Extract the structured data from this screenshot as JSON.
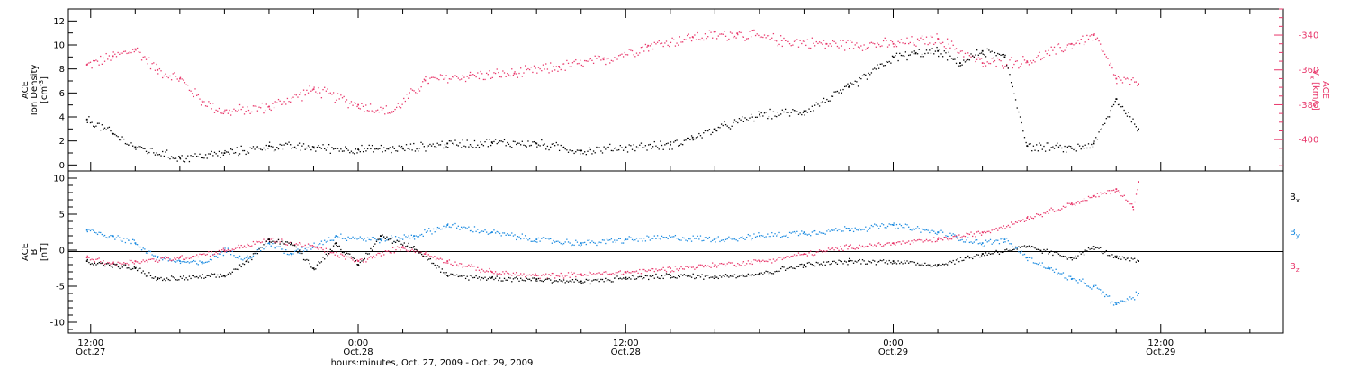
{
  "chart_data": [
    {
      "type": "scatter",
      "title": "",
      "xlabel": "hours:minutes, Oct. 27, 2009 - Oct. 29, 2009",
      "ylabel": "ACE Ion Density [cm⁻³]",
      "y2label": "ACE Vₓ [km/s]",
      "ylim": [
        -0.5,
        13
      ],
      "y2lim": [
        -418,
        -325
      ],
      "xlim": [
        "2009-10-27 11:00",
        "2009-10-29 17:30"
      ],
      "yticks": [
        0,
        2,
        4,
        6,
        8,
        10,
        12
      ],
      "y2ticks": [
        -400,
        -380,
        -360,
        -340
      ],
      "colors": {
        "density": "#000000",
        "vx": "#e8366a"
      },
      "series": [
        {
          "name": "Ion Density",
          "axis": "left",
          "color": "#000000",
          "x": [
            "2009-10-27 11:50",
            "2009-10-27 13:00",
            "2009-10-27 14:00",
            "2009-10-27 16:00",
            "2009-10-27 18:00",
            "2009-10-27 20:00",
            "2009-10-27 22:00",
            "2009-10-28 00:00",
            "2009-10-28 02:00",
            "2009-10-28 04:00",
            "2009-10-28 06:00",
            "2009-10-28 08:00",
            "2009-10-28 10:00",
            "2009-10-28 12:00",
            "2009-10-28 14:00",
            "2009-10-28 15:00",
            "2009-10-28 16:00",
            "2009-10-28 18:00",
            "2009-10-28 20:00",
            "2009-10-28 22:00",
            "2009-10-29 00:00",
            "2009-10-29 01:00",
            "2009-10-29 02:00",
            "2009-10-29 03:00",
            "2009-10-29 04:00",
            "2009-10-29 05:00",
            "2009-10-29 06:00",
            "2009-10-29 08:00",
            "2009-10-29 09:00",
            "2009-10-29 10:00",
            "2009-10-29 11:00"
          ],
          "y": [
            3.8,
            2.6,
            1.5,
            0.6,
            1.0,
            1.6,
            1.5,
            1.3,
            1.4,
            1.8,
            1.9,
            1.8,
            1.2,
            1.5,
            1.7,
            2.3,
            3.0,
            4.2,
            4.5,
            6.5,
            9.0,
            9.3,
            9.5,
            8.5,
            9.5,
            9.0,
            1.6,
            1.4,
            1.8,
            5.5,
            3.0
          ]
        },
        {
          "name": "Vx",
          "axis": "right",
          "color": "#e8366a",
          "x": [
            "2009-10-27 11:50",
            "2009-10-27 13:00",
            "2009-10-27 14:00",
            "2009-10-27 15:00",
            "2009-10-27 16:00",
            "2009-10-27 17:00",
            "2009-10-27 18:00",
            "2009-10-27 20:00",
            "2009-10-27 22:00",
            "2009-10-28 00:00",
            "2009-10-28 01:30",
            "2009-10-28 03:00",
            "2009-10-28 05:00",
            "2009-10-28 07:00",
            "2009-10-28 09:00",
            "2009-10-28 11:00",
            "2009-10-28 13:00",
            "2009-10-28 15:00",
            "2009-10-28 17:00",
            "2009-10-28 19:00",
            "2009-10-28 21:00",
            "2009-10-29 00:00",
            "2009-10-29 02:00",
            "2009-10-29 04:00",
            "2009-10-29 06:00",
            "2009-10-29 08:00",
            "2009-10-29 09:00",
            "2009-10-29 10:00",
            "2009-10-29 11:00"
          ],
          "y": [
            -357,
            -352,
            -348,
            -360,
            -365,
            -378,
            -384,
            -381,
            -371,
            -380,
            -384,
            -366,
            -363,
            -362,
            -358,
            -354,
            -346,
            -341,
            -339,
            -343,
            -345,
            -345,
            -342,
            -356,
            -355,
            -345,
            -340,
            -365,
            -368
          ]
        }
      ]
    },
    {
      "type": "scatter",
      "title": "",
      "xlabel": "hours:minutes, Oct. 27, 2009 - Oct. 29, 2009",
      "ylabel": "ACE B [nT]",
      "ylim": [
        -11.5,
        11
      ],
      "xlim": [
        "2009-10-27 11:00",
        "2009-10-29 17:30"
      ],
      "yticks": [
        -10,
        -5,
        0,
        5,
        10
      ],
      "legend": "right",
      "reference_line": 0,
      "series": [
        {
          "name": "B",
          "subscript": "x",
          "color": "#000000",
          "x": [
            "2009-10-27 11:50",
            "2009-10-27 14:00",
            "2009-10-27 15:00",
            "2009-10-27 18:00",
            "2009-10-27 19:00",
            "2009-10-27 20:00",
            "2009-10-27 21:00",
            "2009-10-27 22:00",
            "2009-10-27 23:00",
            "2009-10-28 00:00",
            "2009-10-28 01:00",
            "2009-10-28 02:30",
            "2009-10-28 04:00",
            "2009-10-28 06:00",
            "2009-10-28 08:00",
            "2009-10-28 10:00",
            "2009-10-28 12:00",
            "2009-10-28 14:00",
            "2009-10-28 16:00",
            "2009-10-28 18:00",
            "2009-10-28 20:00",
            "2009-10-28 22:00",
            "2009-10-29 00:00",
            "2009-10-29 02:00",
            "2009-10-29 04:00",
            "2009-10-29 06:00",
            "2009-10-29 08:00",
            "2009-10-29 09:00",
            "2009-10-29 10:00",
            "2009-10-29 11:00"
          ],
          "y": [
            -1.5,
            -2.5,
            -4.0,
            -3.5,
            -1.5,
            1.5,
            1.0,
            -2.5,
            1.0,
            -2.0,
            2.0,
            0.5,
            -3.5,
            -3.8,
            -4.0,
            -4.3,
            -3.8,
            -3.5,
            -3.6,
            -3.2,
            -2.0,
            -1.5,
            -1.5,
            -2.0,
            -0.5,
            0.5,
            -1.0,
            0.5,
            -1.0,
            -1.5
          ]
        },
        {
          "name": "B",
          "subscript": "y",
          "color": "#1a8ae0",
          "x": [
            "2009-10-27 11:50",
            "2009-10-27 13:00",
            "2009-10-27 14:00",
            "2009-10-27 15:00",
            "2009-10-27 16:00",
            "2009-10-27 17:00",
            "2009-10-27 18:00",
            "2009-10-27 19:00",
            "2009-10-27 20:00",
            "2009-10-27 21:00",
            "2009-10-27 23:00",
            "2009-10-28 01:00",
            "2009-10-28 02:30",
            "2009-10-28 04:00",
            "2009-10-28 06:00",
            "2009-10-28 08:00",
            "2009-10-28 10:00",
            "2009-10-28 12:00",
            "2009-10-28 14:00",
            "2009-10-28 16:00",
            "2009-10-28 18:00",
            "2009-10-28 20:00",
            "2009-10-28 22:00",
            "2009-10-29 00:00",
            "2009-10-29 02:00",
            "2009-10-29 04:00",
            "2009-10-29 05:00",
            "2009-10-29 06:00",
            "2009-10-29 07:00",
            "2009-10-29 08:00",
            "2009-10-29 09:00",
            "2009-10-29 10:00",
            "2009-10-29 11:00"
          ],
          "y": [
            2.8,
            2.0,
            1.0,
            -1.0,
            -1.5,
            -1.8,
            0.0,
            -1.0,
            1.0,
            -0.5,
            2.0,
            1.5,
            2.0,
            3.5,
            2.5,
            1.5,
            1.0,
            1.5,
            1.8,
            1.6,
            2.0,
            2.5,
            3.0,
            3.5,
            2.5,
            1.0,
            1.5,
            -1.0,
            -2.5,
            -4.0,
            -5.0,
            -7.5,
            -6.0
          ]
        },
        {
          "name": "B",
          "subscript": "z",
          "color": "#e8366a",
          "x": [
            "2009-10-27 11:50",
            "2009-10-27 13:00",
            "2009-10-27 14:00",
            "2009-10-27 16:00",
            "2009-10-27 18:00",
            "2009-10-27 20:00",
            "2009-10-27 22:00",
            "2009-10-28 00:00",
            "2009-10-28 02:00",
            "2009-10-28 03:00",
            "2009-10-28 04:00",
            "2009-10-28 06:00",
            "2009-10-28 08:00",
            "2009-10-28 10:00",
            "2009-10-28 12:00",
            "2009-10-28 14:00",
            "2009-10-28 16:00",
            "2009-10-28 18:00",
            "2009-10-28 20:00",
            "2009-10-28 22:00",
            "2009-10-29 00:00",
            "2009-10-29 02:00",
            "2009-10-29 04:00",
            "2009-10-29 06:00",
            "2009-10-29 08:00",
            "2009-10-29 09:00",
            "2009-10-29 10:00",
            "2009-10-29 10:45",
            "2009-10-29 11:00"
          ],
          "y": [
            -1.0,
            -1.8,
            -1.5,
            -1.0,
            0.0,
            1.5,
            0.5,
            -1.5,
            0.5,
            -0.5,
            -1.5,
            -3.0,
            -3.5,
            -3.3,
            -3.0,
            -2.5,
            -2.0,
            -1.5,
            -0.5,
            0.5,
            1.0,
            1.5,
            2.5,
            4.5,
            6.5,
            7.5,
            8.5,
            6.0,
            9.5
          ]
        }
      ]
    }
  ],
  "x_axis": {
    "ticks": [
      {
        "time": "12:00",
        "date": "Oct.27",
        "x": "2009-10-27 12:00"
      },
      {
        "time": "0:00",
        "date": "Oct.28",
        "x": "2009-10-28 00:00"
      },
      {
        "time": "12:00",
        "date": "Oct.28",
        "x": "2009-10-28 12:00"
      },
      {
        "time": "0:00",
        "date": "Oct.29",
        "x": "2009-10-29 00:00"
      },
      {
        "time": "12:00",
        "date": "Oct.29",
        "x": "2009-10-29 12:00"
      }
    ],
    "minor_step_hours": 2,
    "start": "2009-10-27 11:00",
    "end": "2009-10-29 17:30"
  },
  "labels": {
    "top_left_1": "ACE",
    "top_left_2": "Ion Density",
    "top_left_3": "[cm",
    "top_left_sup": "-3",
    "top_left_4": "]",
    "top_right_1": "ACE",
    "top_right_2": "V",
    "top_right_sub": "x",
    "top_right_3": "[km/s]",
    "bot_left_1": "ACE",
    "bot_left_2": "B",
    "bot_left_3": "[nT]",
    "xlabel": "hours:minutes, Oct. 27, 2009 - Oct. 29, 2009"
  }
}
